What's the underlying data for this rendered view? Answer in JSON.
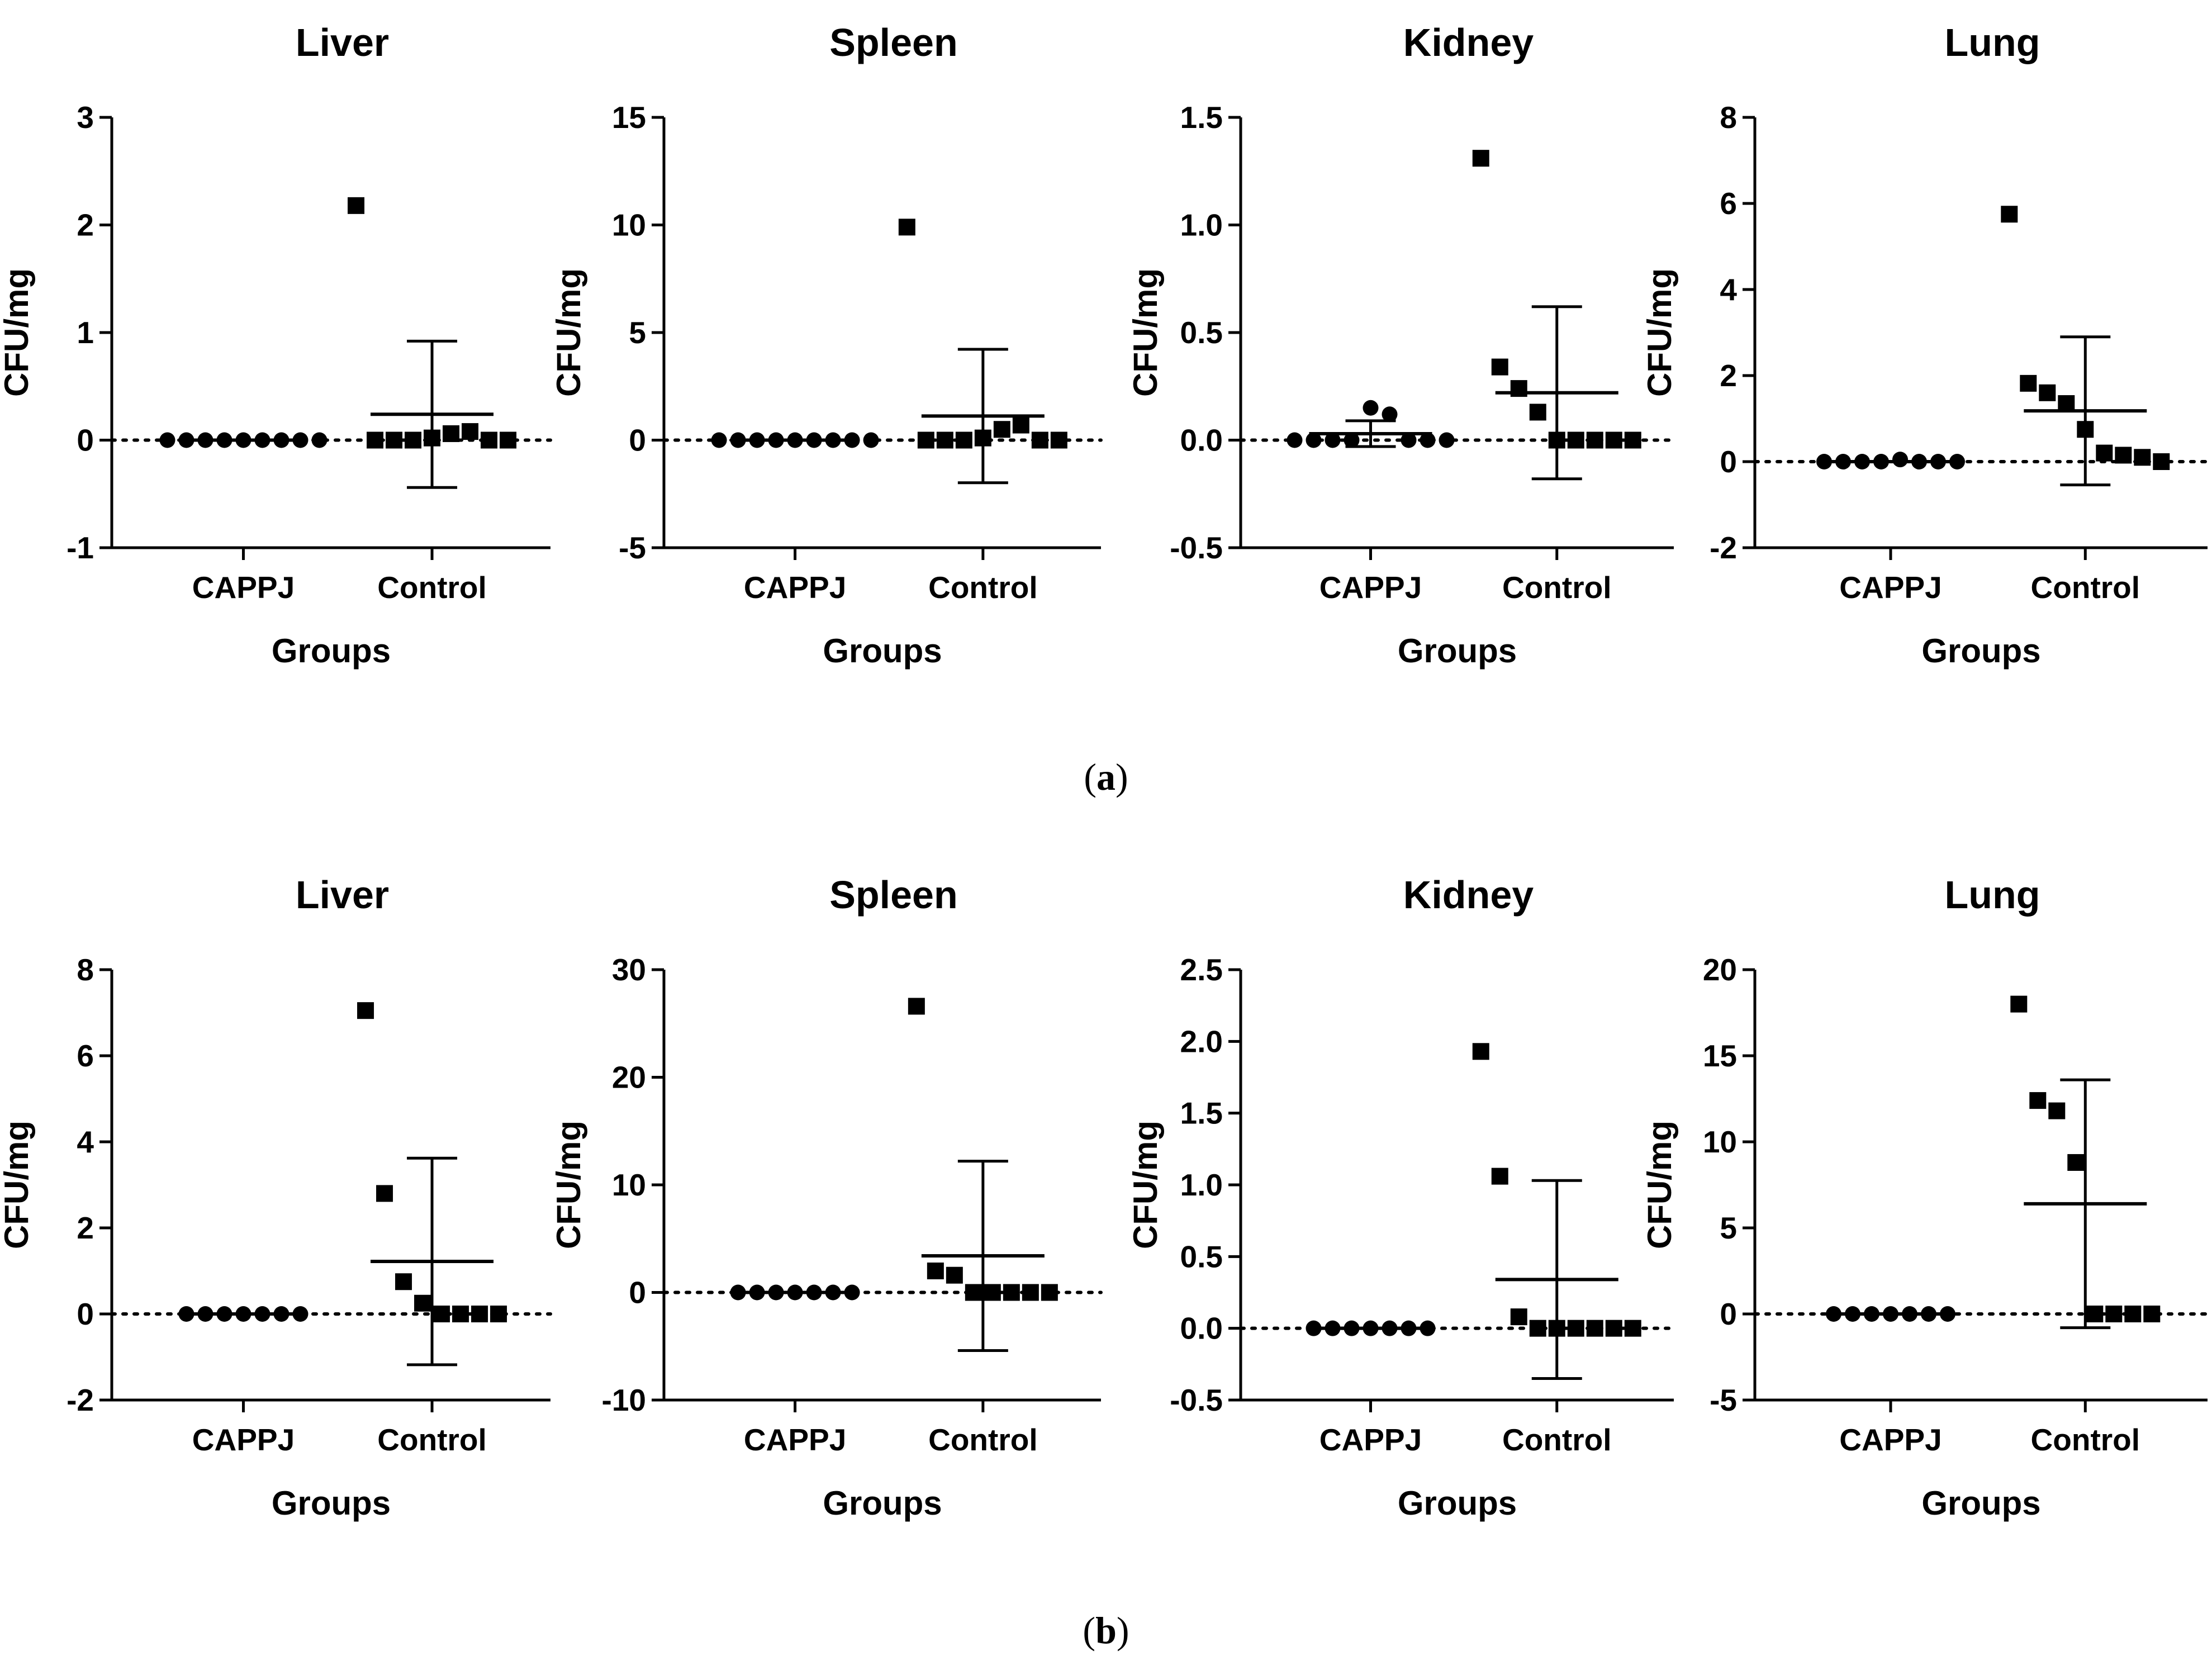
{
  "figure": {
    "panel_labels": [
      {
        "open": "(",
        "letter": "a",
        "close": ")"
      },
      {
        "open": "(",
        "letter": "b",
        "close": ")"
      }
    ]
  },
  "chart_data": [
    {
      "type": "scatter",
      "panel": "a",
      "title": "Liver",
      "xlabel": "Groups",
      "ylabel": "CFU/mg",
      "ylim": [
        -1,
        3
      ],
      "yticks": [
        -1,
        0,
        1,
        2,
        3
      ],
      "ytick_labels": [
        "-1",
        "0",
        "1",
        "2",
        "3"
      ],
      "categories": [
        "CAPPJ",
        "Control"
      ],
      "reference_line_y": 0,
      "groups": [
        {
          "name": "CAPPJ",
          "marker": "circle",
          "points": [
            0,
            0,
            0,
            0,
            0,
            0,
            0,
            0,
            0
          ],
          "mean": 0,
          "sd": null
        },
        {
          "name": "Control",
          "marker": "square",
          "points": [
            2.18,
            0,
            0,
            0,
            0.02,
            0.06,
            0.08,
            0,
            0
          ],
          "mean": 0.24,
          "sd": 0.68
        }
      ]
    },
    {
      "type": "scatter",
      "panel": "a",
      "title": "Spleen",
      "xlabel": "Groups",
      "ylabel": "CFU/mg",
      "ylim": [
        -5,
        15
      ],
      "yticks": [
        -5,
        0,
        5,
        10,
        15
      ],
      "ytick_labels": [
        "-5",
        "0",
        "5",
        "10",
        "15"
      ],
      "categories": [
        "CAPPJ",
        "Control"
      ],
      "reference_line_y": 0,
      "groups": [
        {
          "name": "CAPPJ",
          "marker": "circle",
          "points": [
            0,
            0,
            0,
            0,
            0,
            0,
            0,
            0,
            0
          ],
          "mean": 0,
          "sd": null
        },
        {
          "name": "Control",
          "marker": "square",
          "points": [
            9.9,
            0,
            0,
            0,
            0.1,
            0.5,
            0.7,
            0,
            0
          ],
          "mean": 1.12,
          "sd": 3.1
        }
      ]
    },
    {
      "type": "scatter",
      "panel": "a",
      "title": "Kidney",
      "xlabel": "Groups",
      "ylabel": "CFU/mg",
      "ylim": [
        -0.5,
        1.5
      ],
      "yticks": [
        -0.5,
        0,
        0.5,
        1.0,
        1.5
      ],
      "ytick_labels": [
        "-0.5",
        "0.0",
        "0.5",
        "1.0",
        "1.5"
      ],
      "categories": [
        "CAPPJ",
        "Control"
      ],
      "reference_line_y": 0,
      "groups": [
        {
          "name": "CAPPJ",
          "marker": "circle",
          "points": [
            0,
            0,
            0,
            0,
            0.15,
            0.12,
            0,
            0,
            0
          ],
          "mean": 0.03,
          "sd": 0.06
        },
        {
          "name": "Control",
          "marker": "square",
          "points": [
            1.31,
            0.34,
            0.24,
            0.13,
            0,
            0,
            0,
            0,
            0
          ],
          "mean": 0.22,
          "sd": 0.4
        }
      ]
    },
    {
      "type": "scatter",
      "panel": "a",
      "title": "Lung",
      "xlabel": "Groups",
      "ylabel": "CFU/mg",
      "ylim": [
        -2,
        8
      ],
      "yticks": [
        -2,
        0,
        2,
        4,
        6,
        8
      ],
      "ytick_labels": [
        "-2",
        "0",
        "2",
        "4",
        "6",
        "8"
      ],
      "categories": [
        "CAPPJ",
        "Control"
      ],
      "reference_line_y": 0,
      "groups": [
        {
          "name": "CAPPJ",
          "marker": "circle",
          "points": [
            0,
            0,
            0,
            0,
            0.05,
            0,
            0,
            0
          ],
          "mean": 0,
          "sd": null
        },
        {
          "name": "Control",
          "marker": "square",
          "points": [
            5.75,
            1.82,
            1.6,
            1.35,
            0.75,
            0.2,
            0.15,
            0.1,
            0.0
          ],
          "mean": 1.18,
          "sd": 1.72
        }
      ]
    },
    {
      "type": "scatter",
      "panel": "b",
      "title": "Liver",
      "xlabel": "Groups",
      "ylabel": "CFU/mg",
      "ylim": [
        -2,
        8
      ],
      "yticks": [
        -2,
        0,
        2,
        4,
        6,
        8
      ],
      "ytick_labels": [
        "-2",
        "0",
        "2",
        "4",
        "6",
        "8"
      ],
      "categories": [
        "CAPPJ",
        "Control"
      ],
      "reference_line_y": 0,
      "groups": [
        {
          "name": "CAPPJ",
          "marker": "circle",
          "points": [
            0,
            0,
            0,
            0,
            0,
            0,
            0
          ],
          "mean": 0,
          "sd": null
        },
        {
          "name": "Control",
          "marker": "square",
          "points": [
            7.05,
            2.8,
            0.75,
            0.25,
            0,
            0,
            0,
            0
          ],
          "mean": 1.22,
          "sd": 2.4
        }
      ]
    },
    {
      "type": "scatter",
      "panel": "b",
      "title": "Spleen",
      "xlabel": "Groups",
      "ylabel": "CFU/mg",
      "ylim": [
        -10,
        30
      ],
      "yticks": [
        -10,
        0,
        10,
        20,
        30
      ],
      "ytick_labels": [
        "-10",
        "0",
        "10",
        "20",
        "30"
      ],
      "categories": [
        "CAPPJ",
        "Control"
      ],
      "reference_line_y": 0,
      "groups": [
        {
          "name": "CAPPJ",
          "marker": "circle",
          "points": [
            0,
            0,
            0,
            0,
            0,
            0,
            0
          ],
          "mean": 0,
          "sd": null
        },
        {
          "name": "Control",
          "marker": "square",
          "points": [
            26.6,
            2.0,
            1.6,
            0,
            0,
            0,
            0,
            0
          ],
          "mean": 3.4,
          "sd": 8.8
        }
      ]
    },
    {
      "type": "scatter",
      "panel": "b",
      "title": "Kidney",
      "xlabel": "Groups",
      "ylabel": "CFU/mg",
      "ylim": [
        -0.5,
        2.5
      ],
      "yticks": [
        -0.5,
        0,
        0.5,
        1.0,
        1.5,
        2.0,
        2.5
      ],
      "ytick_labels": [
        "-0.5",
        "0.0",
        "0.5",
        "1.0",
        "1.5",
        "2.0",
        "2.5"
      ],
      "categories": [
        "CAPPJ",
        "Control"
      ],
      "reference_line_y": 0,
      "groups": [
        {
          "name": "CAPPJ",
          "marker": "circle",
          "points": [
            0,
            0,
            0,
            0,
            0,
            0,
            0
          ],
          "mean": 0,
          "sd": null
        },
        {
          "name": "Control",
          "marker": "square",
          "points": [
            1.93,
            1.06,
            0.08,
            0,
            0,
            0,
            0,
            0,
            0
          ],
          "mean": 0.34,
          "sd": 0.69
        }
      ]
    },
    {
      "type": "scatter",
      "panel": "b",
      "title": "Lung",
      "xlabel": "Groups",
      "ylabel": "CFU/mg",
      "ylim": [
        -5,
        20
      ],
      "yticks": [
        -5,
        0,
        5,
        10,
        15,
        20
      ],
      "ytick_labels": [
        "-5",
        "0",
        "5",
        "10",
        "15",
        "20"
      ],
      "categories": [
        "CAPPJ",
        "Control"
      ],
      "reference_line_y": 0,
      "groups": [
        {
          "name": "CAPPJ",
          "marker": "circle",
          "points": [
            0,
            0,
            0,
            0,
            0,
            0,
            0
          ],
          "mean": 0,
          "sd": null
        },
        {
          "name": "Control",
          "marker": "square",
          "points": [
            18.0,
            12.4,
            11.8,
            8.8,
            0,
            0,
            0,
            0
          ],
          "mean": 6.4,
          "sd": 7.2
        }
      ]
    }
  ]
}
